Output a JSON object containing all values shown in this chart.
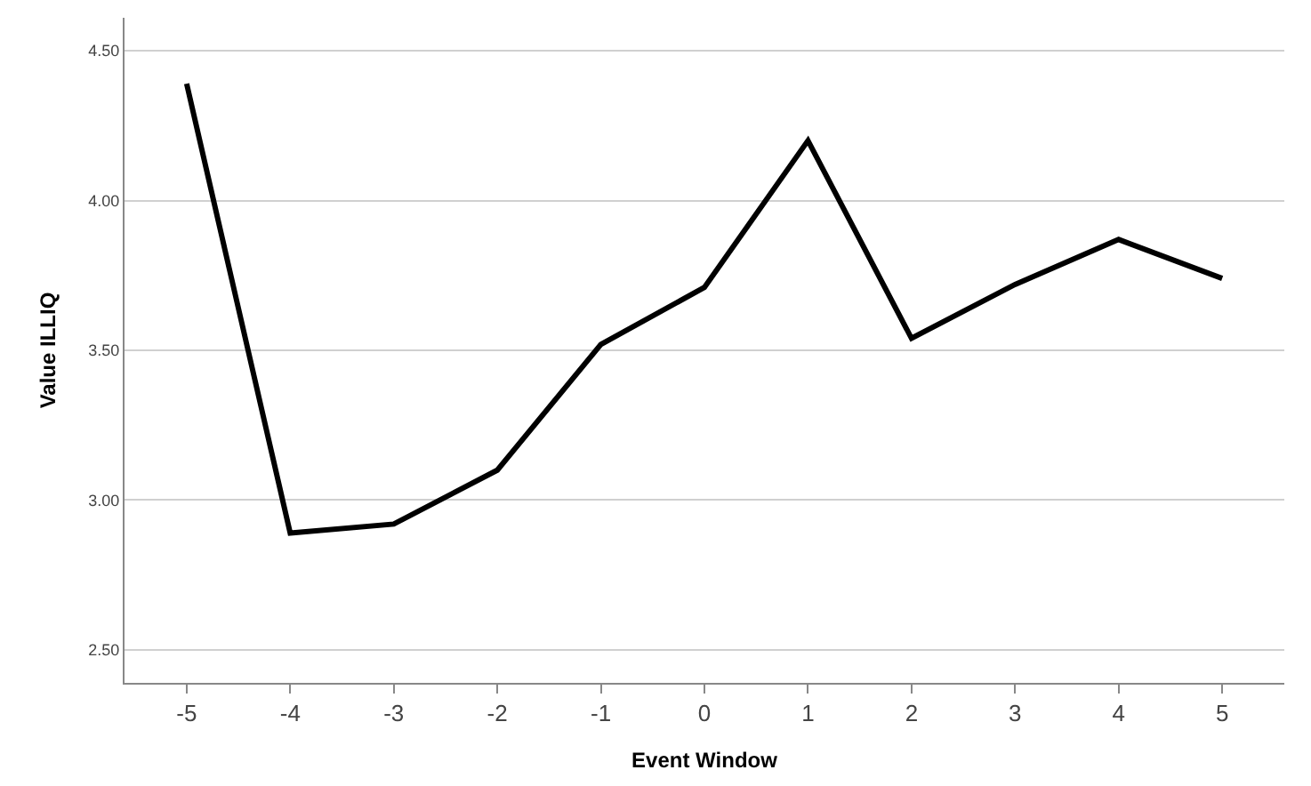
{
  "chart_data": {
    "type": "line",
    "xlabel": "Event Window",
    "ylabel": "Value ILLIQ",
    "categories": [
      "-5",
      "-4",
      "-3",
      "-2",
      "-1",
      "0",
      "1",
      "2",
      "3",
      "4",
      "5"
    ],
    "series": [
      {
        "color": "#000000",
        "values": [
          4.39,
          2.89,
          2.92,
          3.1,
          3.52,
          3.71,
          4.2,
          3.54,
          3.72,
          3.87,
          3.74
        ]
      }
    ],
    "ylim": [
      2.39,
      4.61
    ],
    "yticks": [
      {
        "value": 2.5,
        "label": "2.50"
      },
      {
        "value": 3.0,
        "label": "3.00"
      },
      {
        "value": 3.5,
        "label": "3.50"
      },
      {
        "value": 4.0,
        "label": "4.00"
      },
      {
        "value": 4.5,
        "label": "4.50"
      }
    ],
    "grid": "y",
    "legend": false,
    "marker": "none",
    "line_style": "solid"
  }
}
